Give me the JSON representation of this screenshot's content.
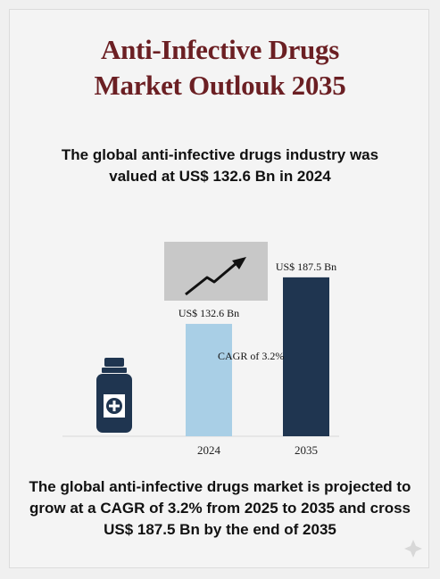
{
  "header": {
    "title_line1": "Anti-Infective Drugs",
    "title_line2": "Market Outlouk 2035",
    "subtitle_line1": "The global anti-infective drugs industry was",
    "subtitle_line2": "valued at US$ 132.6 Bn in 2024"
  },
  "footer": {
    "line1": "The global anti-infective drugs market is projected to",
    "line2": "grow at a CAGR of 3.2% from 2025 to 2035 and cross",
    "line3": "US$ 187.5 Bn by the end of 2035"
  },
  "colors": {
    "title": "#6b1f23",
    "bar_2024": "#a9cfe6",
    "bar_2035": "#1f3550",
    "bottle": "#1f3550"
  },
  "icons": [
    "medicine-bottle-icon",
    "trend-up-arrow-icon"
  ],
  "chart_data": {
    "type": "bar",
    "categories": [
      "2024",
      "2035"
    ],
    "values": [
      132.6,
      187.5
    ],
    "data_labels": [
      "US$ 132.6 Bn",
      "US$ 187.5 Bn"
    ],
    "annotation": "CAGR of 3.2%",
    "unit": "US$ Bn",
    "ylim": [
      0,
      200
    ],
    "grid": false,
    "legend": "none"
  }
}
